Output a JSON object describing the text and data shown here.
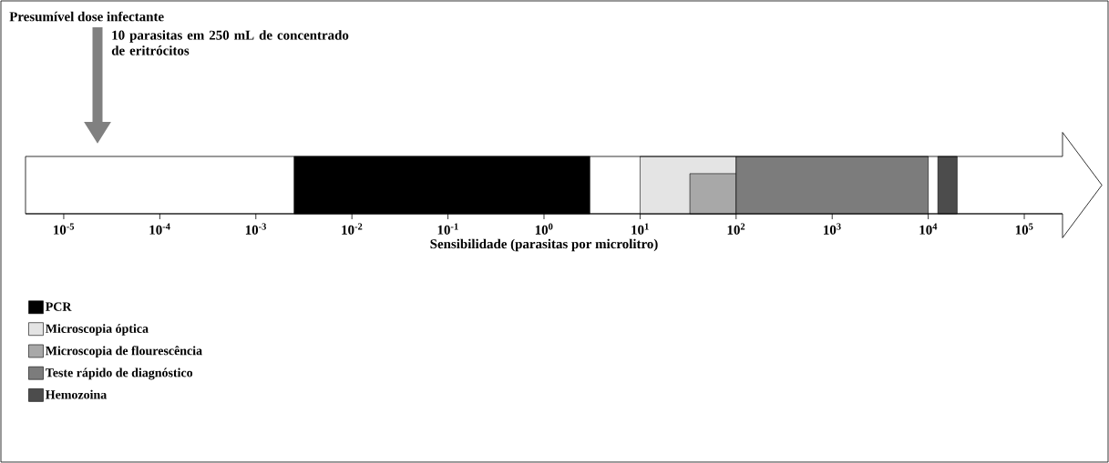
{
  "chart_data": {
    "type": "bar",
    "orientation": "horizontal",
    "log": "x",
    "xlabel": "Sensibilidade (parasitas por microlitro)",
    "categories": [
      null
    ],
    "xlim": [
      4e-06,
      250000.0
    ],
    "xticks": [
      {
        "value": 1e-05,
        "label": "10$^{-5}$"
      },
      {
        "value": 0.0001,
        "label": "10$^{-4}$"
      },
      {
        "value": 0.001,
        "label": "10$^{-3}$"
      },
      {
        "value": 0.01,
        "label": "10$^{-2}$"
      },
      {
        "value": 0.1,
        "label": "10$^{-1}$"
      },
      {
        "value": 1,
        "label": "10$^{0}$"
      },
      {
        "value": 10,
        "label": "10$^{1}$"
      },
      {
        "value": 100,
        "label": "10$^{2}$"
      },
      {
        "value": 1000,
        "label": "10$^{3}$"
      },
      {
        "value": 10000,
        "label": "10$^{4}$"
      },
      {
        "value": 100000,
        "label": "10$^{5}$"
      }
    ],
    "series": [
      {
        "name": "PCR",
        "color": "#000000",
        "base": [
          0.0025
        ],
        "values": [
          2.9975
        ]
      },
      {
        "name": "Microscopia óptica",
        "color": "#e4e4e4",
        "base": [
          10
        ],
        "values": [
          90
        ]
      },
      {
        "name": "Microscopia de flourescência",
        "color": "#a8a8a8",
        "base": [
          33
        ],
        "values": [
          67
        ]
      },
      {
        "name": "Teste rápido de diagnóstico",
        "color": "#7c7c7c",
        "base": [
          100
        ],
        "values": [
          9900
        ]
      },
      {
        "name": "Hemozoina",
        "color": "#4c4c4c",
        "base": [
          12600
        ],
        "values": [
          7400
        ]
      }
    ],
    "legend": "bottom left",
    "annotations": [
      "Presumível dose infectante",
      "10 parasitas em 250 mL de concentrado de eritrócitos"
    ]
  }
}
